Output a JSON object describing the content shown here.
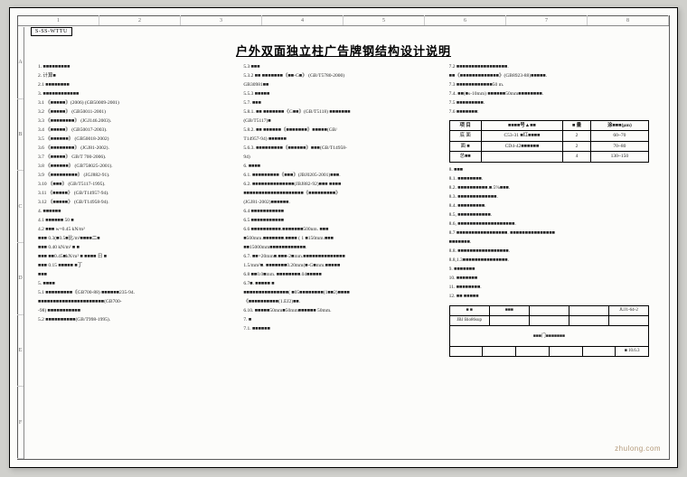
{
  "tag": "S-SS-WTTU",
  "title": "户外双面独立柱广告牌钢结构设计说明",
  "ruler_top": [
    "1",
    "2",
    "3",
    "4",
    "5",
    "6",
    "7",
    "8"
  ],
  "ruler_left": [
    "A",
    "B",
    "C",
    "D",
    "E",
    "F"
  ],
  "col1": [
    "1.  ■■■■■■■■■",
    "2.  计算■",
    "2.1  ■■■■■■■■",
    "3.  ■■■■■■■■■■■■",
    "3.1  《■■■■■》(2006)  (GB50009-2001)",
    "3.2  《■■■■■》          (GB50011-2001)",
    "3.3  《■■■■■■■■》     (JGJ146.2003).",
    "3.4  《■■■■■》          (GB50017-2003).",
    "3.5  《■■■■■■》        (GB50018-2002)",
    "3.6  《■■■■■■■■》     (JGJ81-2002).",
    "3.7  《■■■■■》             GB/T 700-2006).",
    "3.8  《■■■■■■》        (GB758025-2001).",
    "3.9  《■■■■■■■■■》   (JGJ882-91).",
    "3.10  《■■■》            (GB/T5117-1995).",
    "3.11  《■■■■■》         (GB/T14957-94).",
    "3.12  《■■■■■》         (GB/T14958-94).",
    "4.  ■■■■■■",
    "4.1  ■■■■■■ 50 ■",
    "4.2  ■■■ w=0.45 kN/m²",
    "      ■■■ 0.3(■0.5■比/m²■■■■二■",
    "      ■■■ 0.40 kN/m²   ■  ■",
    "      ■■■ ■■0.45■kN/m²  ■ ■■■■ 日 ■",
    "      ■■■ 0.15 ■■■■■  ■丁",
    "      ■■■",
    "5.  ■■■■",
    "5.1  ■■■■■■■■■《GB700-88) ■■■■■■235-94.",
    "     ■■■■■■■■■■■■■■■■■■■■■■(GB700-",
    "     -98) ■■■■■■■■■■■",
    "5.2  ■■■■■■■■■■(GB/T998-1995)."
  ],
  "col2": [
    "5.3  ■■■",
    "5.3.2 ■■  ■■■■■■■《■■-G■》  (GB/T5780-2000)",
    "                     GB30981■■",
    "5.5.3  ■■■■■",
    "5.7.  ■■■",
    "5.8.1.  ■■  ■■■■■■■《G■■》(GB/T5118)  ■■■■■■■",
    "       (GB/T5117)■",
    "5.8.2.  ■■  ■■■■■■《■■■■■■■》■■■■■(GB/",
    "       T14957-94)  ■■■■■■",
    "5.6.3.  ■■■■■■■■■《■■■■■■》■■■(GB/T14958-",
    "       94)",
    "6.     ■■■■",
    "6.1.   ■■■■■■■■■《■■■》(JBJ0205-2001)■■■.",
    "6.2.   ■■■■■■■■■■■■■■(JBJ882-92)■■■   ■■■■",
    "       ■■■■■■■■■■■■■■■■■■■■《■■■■■■■■■》",
    "       (JGJ81-2002)■■■■■■.",
    "6.4    ■■■■■■■■■■■",
    "6.5    ■■■■■■■■■■■",
    "6.6    ■■■■■■■■■■.■■■■■■■500nm. ■■■",
    "       ■500mm.■■■■■■■.■■■■ (  1 ■150mm.■■■",
    "       ■■15000mm■■■■■■■■■■■■.",
    "6.7.   ■■=20mm■.■■■-2■mm.■■■■■■■■■■■■■■",
    "       1.5/mm²■. ■■■■■■■0.20mm(■-G■mm.■■■■■",
    "6.8    ■■0.0■mm.  ■■■■■■■■.04■■■■■",
    "6.7■.  ■■■■■   ■",
    "       ■■■■■■■■■■■■■■■(  ■05■■■■■■■■(1■■2)■■■■",
    "       《■■■■■■■■■■(1.EJ2)■■.",
    "6.10.  ■■■■■50mm■50mm■■■■■■ 50mm.",
    "7.     ■",
    "7.1.   ■■■■■■"
  ],
  "col3_top": [
    "7.2  ■■■■■■■■■■■■■■■■■.",
    "     ■■《■■■■■■■■■■■■■》(GB8923-88)■■■■■.",
    "7.3  ■■■■■■■■■■■■50 m.",
    "7.4.  ■■(■s-10mm) ■■■■■■50mm■■■■■■■■.",
    "7.5  ■■■■■■■■■.",
    "7.6  ■■■■■■■:"
  ],
  "table": {
    "headers": [
      "项 目",
      "■■■■号▲■■",
      "■ 量",
      "涂■■■(μm)"
    ],
    "rows": [
      [
        "底 面",
        "C53-31 ■红■■■■",
        "2",
        "60~70"
      ],
      [
        "面 ■",
        "CD4-42■■■■■■",
        "2",
        "70~80"
      ],
      [
        "总■■",
        "",
        "4",
        "130~150"
      ]
    ]
  },
  "col3_mid": [
    "8.   ■■■",
    "8.1.  ■■■■■■■■.",
    "8.2.  ■■■■■■■■■■.■.5%■■■.",
    "8.3.  ■■■■■■■■■■■■■.",
    "8.4.  ■■■■■■■■■.",
    "8.5, ■■■■■■■■■■■.",
    "8.6, ■■■■■■■■■■■■■■■■■■■.",
    "8.7  ■■■■■■■■■■■■■■■■■.  ■■■■■■■■■■■■■■■",
    "     ■■■■■■■.",
    "8.8.  ■■■■■■■■■■■■■■■■■.",
    "8.8,1.3■■■■■■■■■■■■■■■.",
    "9.    ■■■■■■■",
    "10.   ■■■■■■■",
    "11.   ■■■■■■■■.",
    "12.   ■■ ■■■■■"
  ],
  "title_block": {
    "row1": [
      "■ ■",
      "■■■",
      "",
      "",
      " JUJ1-64-2"
    ],
    "row2": [
      "JBJ Bio86sup",
      "",
      "",
      "",
      ""
    ],
    "main": "■■■门■■■■■■■",
    "bottom": [
      "",
      "",
      "",
      "",
      "",
      "■ 10.6.3"
    ]
  },
  "watermark": "zhulong.com"
}
